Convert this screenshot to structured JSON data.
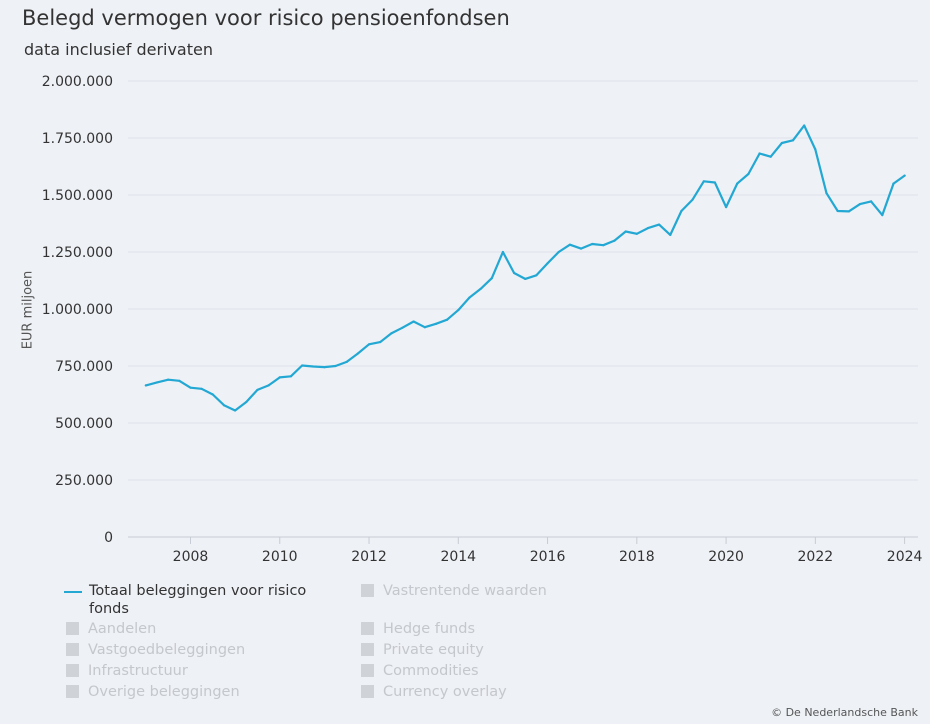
{
  "colors": {
    "series": "#22a8d3",
    "grid": "#dde1e8",
    "axis": "#c8ccd3",
    "legend_disabled": "#cfd2d6"
  },
  "legend": [
    {
      "label": "Totaal beleggingen voor risico fonds",
      "active": true
    },
    {
      "label": "Vastrentende waarden",
      "active": false
    },
    {
      "label": "Aandelen",
      "active": false
    },
    {
      "label": "Hedge funds",
      "active": false
    },
    {
      "label": "Vastgoedbeleggingen",
      "active": false
    },
    {
      "label": "Private equity",
      "active": false
    },
    {
      "label": "Infrastructuur",
      "active": false
    },
    {
      "label": "Commodities",
      "active": false
    },
    {
      "label": "Overige beleggingen",
      "active": false
    },
    {
      "label": "Currency overlay",
      "active": false
    }
  ],
  "credit": "© De Nederlandsche Bank",
  "chart_data": {
    "type": "line",
    "title": "Belegd vermogen voor risico pensioenfondsen",
    "subtitle": "data inclusief derivaten",
    "xlabel": "",
    "ylabel": "EUR miljoen",
    "xlim": [
      2006.6,
      2024.3
    ],
    "ylim": [
      0,
      2000000
    ],
    "yticks": [
      0,
      250000,
      500000,
      750000,
      1000000,
      1250000,
      1500000,
      1750000,
      2000000
    ],
    "ytick_labels": [
      "0",
      "250.000",
      "500.000",
      "750.000",
      "1.000.000",
      "1.250.000",
      "1.500.000",
      "1.750.000",
      "2.000.000"
    ],
    "xticks": [
      2008,
      2010,
      2012,
      2014,
      2016,
      2018,
      2020,
      2022,
      2024
    ],
    "xtick_labels": [
      "2008",
      "2010",
      "2012",
      "2014",
      "2016",
      "2018",
      "2020",
      "2022",
      "2024"
    ],
    "series": [
      {
        "name": "Totaal beleggingen voor risico fonds",
        "x": [
          2007.0,
          2007.25,
          2007.5,
          2007.75,
          2008.0,
          2008.25,
          2008.5,
          2008.75,
          2009.0,
          2009.25,
          2009.5,
          2009.75,
          2010.0,
          2010.25,
          2010.5,
          2010.75,
          2011.0,
          2011.25,
          2011.5,
          2011.75,
          2012.0,
          2012.25,
          2012.5,
          2012.75,
          2013.0,
          2013.25,
          2013.5,
          2013.75,
          2014.0,
          2014.25,
          2014.5,
          2014.75,
          2015.0,
          2015.25,
          2015.5,
          2015.75,
          2016.0,
          2016.25,
          2016.5,
          2016.75,
          2017.0,
          2017.25,
          2017.5,
          2017.75,
          2018.0,
          2018.25,
          2018.5,
          2018.75,
          2019.0,
          2019.25,
          2019.5,
          2019.75,
          2020.0,
          2020.25,
          2020.5,
          2020.75,
          2021.0,
          2021.25,
          2021.5,
          2021.75,
          2022.0,
          2022.25,
          2022.5,
          2022.75,
          2023.0,
          2023.25,
          2023.5,
          2023.75,
          2024.0
        ],
        "values": [
          665000,
          678000,
          690000,
          685000,
          655000,
          650000,
          625000,
          578000,
          555000,
          592000,
          645000,
          665000,
          700000,
          705000,
          752000,
          748000,
          745000,
          750000,
          768000,
          805000,
          845000,
          855000,
          893000,
          918000,
          945000,
          920000,
          935000,
          953000,
          995000,
          1050000,
          1088000,
          1135000,
          1250000,
          1158000,
          1132000,
          1148000,
          1200000,
          1250000,
          1282000,
          1265000,
          1285000,
          1280000,
          1300000,
          1340000,
          1330000,
          1355000,
          1370000,
          1325000,
          1430000,
          1480000,
          1560000,
          1555000,
          1447000,
          1550000,
          1592000,
          1682000,
          1668000,
          1728000,
          1740000,
          1805000,
          1700000,
          1508000,
          1430000,
          1428000,
          1460000,
          1472000,
          1412000,
          1550000,
          1585000
        ]
      }
    ]
  }
}
